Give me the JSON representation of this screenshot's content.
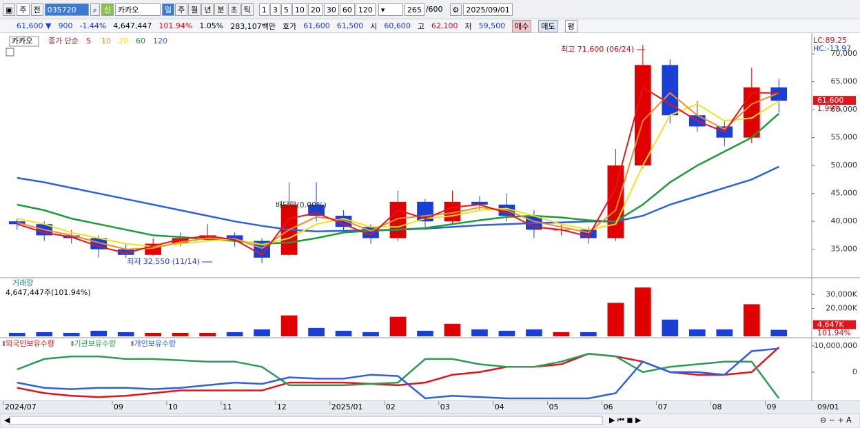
{
  "toolbar": {
    "period_select": "주",
    "prev": "전",
    "code": "035720",
    "badge": "신",
    "name": "카카오",
    "intervals": [
      "일",
      "주",
      "월",
      "년",
      "분",
      "초",
      "틱"
    ],
    "counts": [
      "1",
      "3",
      "5",
      "10",
      "20",
      "30",
      "60",
      "120"
    ],
    "shown": "265",
    "total": "/600",
    "date": "2025/09/01"
  },
  "infobar": {
    "price": "61,600 ▼",
    "change": "900",
    "rate": "-1.44%",
    "volume": "4,647,447",
    "volume_rate": "101.94%",
    "turnover": "1.05%",
    "amount": "283,107백만",
    "quote": "호가",
    "ask": "61,600",
    "bid": "61,500",
    "open_label": "시",
    "open": "60,600",
    "high_label": "고",
    "high": "62,100",
    "low_label": "저",
    "low": "59,500",
    "buy": "매수",
    "sell": "매도",
    "avg": "평"
  },
  "chart_data": [
    {
      "type": "candlestick",
      "title": "카카오",
      "legend_title": "종가 단순",
      "up_color": "#e00000",
      "down_color": "#1a3fd6",
      "open": [
        40000,
        39500,
        37500,
        37000,
        35000,
        34000,
        36000,
        37000,
        37500,
        36500,
        34000,
        43000,
        41000,
        39000,
        37000,
        43500,
        40000,
        43500,
        43000,
        41000,
        38500,
        38500,
        37000,
        50000,
        68000,
        59000,
        57000,
        55000,
        64000
      ],
      "high": [
        40500,
        40000,
        38500,
        37500,
        36000,
        37000,
        38000,
        39500,
        38000,
        37000,
        47000,
        47000,
        42000,
        39500,
        45500,
        44000,
        45500,
        44500,
        45000,
        42000,
        39500,
        39000,
        53000,
        71600,
        69000,
        61500,
        58000,
        67500,
        65500
      ],
      "low": [
        38500,
        36500,
        36000,
        33500,
        33500,
        33800,
        35500,
        36500,
        35500,
        32550,
        33800,
        40000,
        38000,
        36000,
        36500,
        39000,
        39500,
        42000,
        40000,
        37000,
        37500,
        36000,
        36500,
        49500,
        57500,
        56000,
        53500,
        54000,
        59500
      ],
      "close": [
        39500,
        37500,
        37000,
        35000,
        34000,
        36000,
        37000,
        37500,
        36500,
        33500,
        43000,
        41000,
        39000,
        37000,
        43500,
        40000,
        43500,
        43000,
        41000,
        38500,
        38500,
        37000,
        50000,
        68000,
        59000,
        57000,
        55000,
        64000,
        61600
      ],
      "series": [
        {
          "name": "5",
          "color": "#e8141b",
          "values": [
            39500,
            38000,
            37200,
            35500,
            34300,
            35600,
            36800,
            37400,
            36700,
            34000,
            40500,
            41500,
            39500,
            37500,
            42000,
            40500,
            42500,
            43000,
            41500,
            39000,
            38500,
            37300,
            46000,
            64000,
            61000,
            58000,
            56000,
            63000,
            63000
          ]
        },
        {
          "name": "10",
          "color": "#f28c28",
          "values": [
            39800,
            38500,
            37500,
            36200,
            35000,
            35200,
            36300,
            37000,
            36900,
            35200,
            38500,
            40800,
            40200,
            38300,
            40500,
            41000,
            41500,
            42500,
            42000,
            40000,
            39000,
            38000,
            42000,
            58000,
            63000,
            59000,
            56500,
            61000,
            63000
          ]
        },
        {
          "name": "20",
          "color": "#f5e11a",
          "values": [
            40500,
            39500,
            38000,
            37000,
            36000,
            35500,
            36000,
            36500,
            36800,
            35800,
            37000,
            39500,
            40500,
            39000,
            39000,
            40500,
            41000,
            42000,
            42300,
            41000,
            39500,
            38500,
            39500,
            50000,
            59000,
            61000,
            58000,
            58500,
            61600
          ]
        },
        {
          "name": "60",
          "color": "#1e9a3a",
          "values": [
            43000,
            42000,
            40500,
            39500,
            38500,
            37500,
            37200,
            36800,
            36500,
            36000,
            36200,
            37000,
            38000,
            38300,
            38500,
            38800,
            39500,
            40200,
            40800,
            41000,
            40700,
            40200,
            40000,
            43000,
            47000,
            50000,
            52500,
            55000,
            59300
          ]
        },
        {
          "name": "120",
          "color": "#2e5fdc",
          "values": [
            47800,
            47000,
            46000,
            45000,
            44000,
            43000,
            42000,
            41000,
            40000,
            39200,
            38500,
            38200,
            38300,
            38400,
            38500,
            38700,
            39000,
            39300,
            39500,
            39700,
            39800,
            40000,
            40000,
            41000,
            43000,
            44500,
            46000,
            47500,
            49800
          ]
        }
      ],
      "ylim": [
        29900,
        73100
      ],
      "yticks": [
        {
          "value": 35000,
          "label": "35,000"
        },
        {
          "value": 40000,
          "label": "40,000"
        },
        {
          "value": 45000,
          "label": "45,000"
        },
        {
          "value": 50000,
          "label": "50,000"
        },
        {
          "value": 55000,
          "label": "55,000"
        },
        {
          "value": 60000,
          "label": "60,000"
        },
        {
          "value": 65000,
          "label": "65,000"
        },
        {
          "value": 70000,
          "label": "70,000"
        }
      ],
      "annotations": [
        "최고 71,600 (06/24)",
        "최저 32,550 (11/14)",
        "배당락(0.00%)"
      ],
      "indicators": [
        "LC:89.25",
        "HC:-13.97"
      ],
      "last": {
        "value": 61600,
        "label": "61,600"
      },
      "last_change": "1.99%"
    },
    {
      "type": "volume",
      "title": "거래량",
      "subtitle": "4,647,447주(101.94%)",
      "values": [
        2500,
        3000,
        2500,
        4000,
        3000,
        2500,
        2500,
        2500,
        3000,
        5000,
        15000,
        6000,
        4000,
        3000,
        14000,
        4000,
        9000,
        5000,
        4000,
        5000,
        3000,
        3000,
        24000,
        35000,
        12000,
        5000,
        5000,
        23000,
        4647
      ],
      "ylim": [
        0,
        41000
      ],
      "yticks": [
        {
          "value": 20000,
          "label": "20,000K"
        },
        {
          "value": 30000,
          "label": "30,000K"
        }
      ],
      "last": {
        "value": 4647,
        "label": "4,647K"
      },
      "last_rate": "101.94%"
    },
    {
      "type": "line",
      "categories": [
        "2024/07",
        null,
        null,
        null,
        "09",
        null,
        "10",
        null,
        "11",
        null,
        "12",
        null,
        "2025/01",
        null,
        "02",
        null,
        "03",
        null,
        "04",
        null,
        "05",
        null,
        "06",
        null,
        "07",
        null,
        "08",
        null,
        "09"
      ],
      "series": [
        {
          "name": "외국인보유수량",
          "color": "#e0141b",
          "values": [
            -6000000,
            -8000000,
            -9000000,
            -9500000,
            -9000000,
            -8000000,
            -7000000,
            -7000000,
            -7000000,
            -7000000,
            -4000000,
            -4000000,
            -4000000,
            -4500000,
            -5000000,
            -4000000,
            -1000000,
            0,
            2000000,
            2000000,
            3000000,
            7000000,
            6000000,
            4000000,
            0,
            -1000000,
            -1000000,
            0,
            9500000
          ]
        },
        {
          "name": "기관보유수량",
          "color": "#2e9a5a",
          "values": [
            1000000,
            5000000,
            6000000,
            6000000,
            5000000,
            5000000,
            4500000,
            4000000,
            4000000,
            2000000,
            -5000000,
            -5000000,
            -5000000,
            -4500000,
            -4000000,
            5000000,
            5000000,
            3000000,
            2000000,
            2000000,
            4000000,
            7000000,
            6000000,
            0,
            2000000,
            3000000,
            4000000,
            4000000,
            -10000000
          ]
        },
        {
          "name": "개인보유수량",
          "color": "#2e5fdc",
          "values": [
            -4000000,
            -6000000,
            -6500000,
            -6000000,
            -6000000,
            -6500000,
            -6000000,
            -5000000,
            -4000000,
            -4500000,
            -2000000,
            -2500000,
            -2500000,
            -1000000,
            -1500000,
            -10000000,
            -9000000,
            -9500000,
            -10000000,
            -10000000,
            -10000000,
            -10000000,
            -8000000,
            4000000,
            0,
            0,
            -1000000,
            8000000,
            9000000
          ]
        }
      ],
      "ylim": [
        -10800000,
        12600000
      ],
      "yticks": [
        0,
        {
          "value": 10000000,
          "label": "10,000,000"
        }
      ],
      "end_label": "09/01"
    }
  ]
}
